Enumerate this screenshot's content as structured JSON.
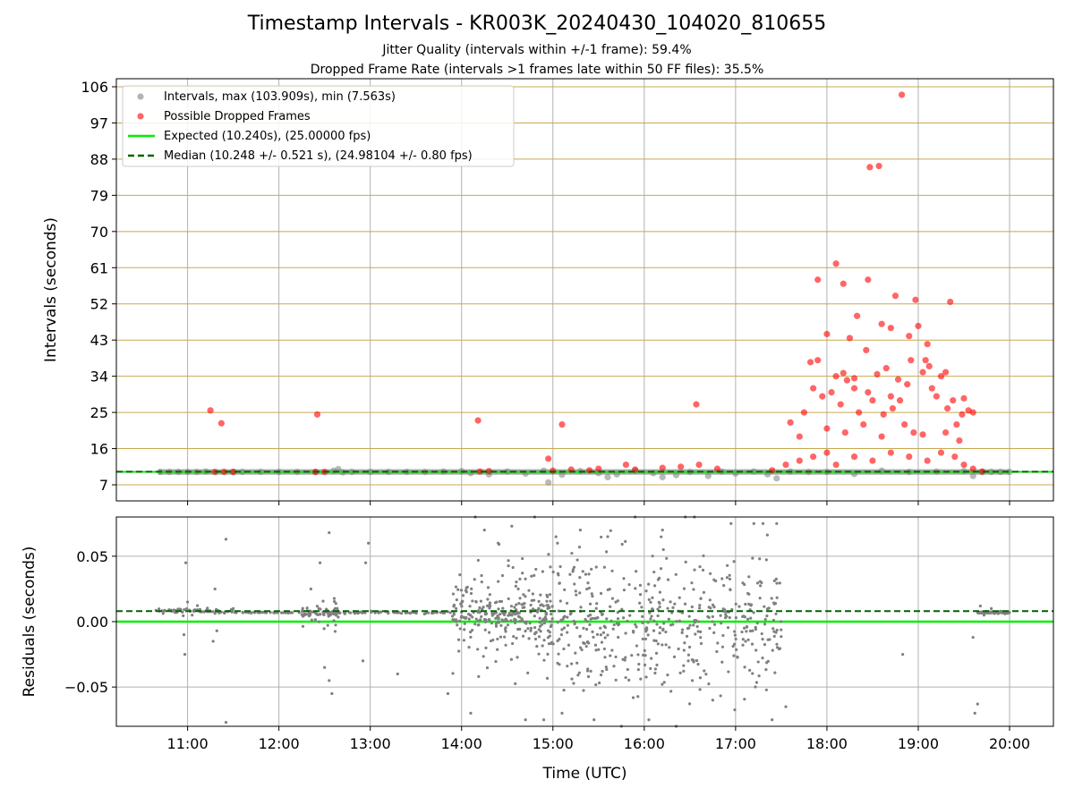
{
  "title": "Timestamp Intervals - KR003K_20240430_104020_810655",
  "subtitle1": "Jitter Quality (intervals within +/-1 frame): 59.4%",
  "subtitle2": "Dropped Frame Rate (intervals >1 frames late within 50 FF files): 35.5%",
  "colors": {
    "intervals": "#808080",
    "dropped": "#ff0000",
    "expected": "#00ee00",
    "median": "#006400",
    "hgrid_top": "#c8a850",
    "grid": "#b0b0b0"
  },
  "chart_data": [
    {
      "type": "scatter",
      "xlabel": "",
      "ylabel": "Intervals (seconds)",
      "ylim": [
        3,
        108
      ],
      "yticks": [
        7,
        16,
        25,
        34,
        43,
        52,
        61,
        70,
        79,
        88,
        97,
        106
      ],
      "xlim": [
        10.22,
        20.48
      ],
      "grid": true,
      "legend": {
        "placement": "top-left",
        "entries": [
          "Intervals, max (103.909s), min (7.563s)",
          "Possible Dropped Frames",
          "Expected (10.240s), (25.00000 fps)",
          "Median (10.248 +/- 0.521 s), (24.98104 +/- 0.80 fps)"
        ]
      },
      "reference_lines": [
        {
          "name": "Expected (10.240s), (25.00000 fps)",
          "y": 10.24,
          "style": "solid"
        },
        {
          "name": "Median (10.248 +/- 0.521 s), (24.98104 +/- 0.80 fps)",
          "y": 10.248,
          "style": "dashed"
        }
      ],
      "series": [
        {
          "name": "Intervals, max (103.909s), min (7.563s)",
          "points": [
            [
              10.7,
              10.2
            ],
            [
              10.8,
              10.2
            ],
            [
              10.9,
              10.2
            ],
            [
              11.0,
              10.2
            ],
            [
              11.1,
              10.2
            ],
            [
              11.2,
              10.3
            ],
            [
              11.5,
              10.2
            ],
            [
              11.6,
              10.2
            ],
            [
              11.8,
              10.2
            ],
            [
              12.0,
              10.2
            ],
            [
              12.2,
              10.2
            ],
            [
              12.4,
              10.2
            ],
            [
              12.6,
              10.5
            ],
            [
              12.65,
              10.9
            ],
            [
              12.7,
              10.1
            ],
            [
              12.8,
              10.2
            ],
            [
              13.0,
              10.2
            ],
            [
              13.2,
              10.2
            ],
            [
              13.4,
              10.2
            ],
            [
              13.6,
              10.2
            ],
            [
              13.8,
              10.3
            ],
            [
              14.0,
              10.4
            ],
            [
              14.1,
              9.9
            ],
            [
              14.3,
              9.6
            ],
            [
              14.5,
              10.3
            ],
            [
              14.7,
              9.8
            ],
            [
              14.9,
              10.5
            ],
            [
              14.95,
              7.6
            ],
            [
              15.1,
              9.5
            ],
            [
              15.3,
              10.4
            ],
            [
              15.5,
              9.9
            ],
            [
              15.6,
              8.9
            ],
            [
              15.7,
              9.6
            ],
            [
              15.9,
              10.5
            ],
            [
              16.1,
              9.9
            ],
            [
              16.2,
              8.9
            ],
            [
              16.35,
              9.4
            ],
            [
              16.5,
              10.2
            ],
            [
              16.7,
              9.2
            ],
            [
              16.85,
              10.3
            ],
            [
              17.0,
              9.8
            ],
            [
              17.2,
              10.3
            ],
            [
              17.35,
              9.6
            ],
            [
              17.45,
              8.6
            ],
            [
              17.6,
              10.3
            ],
            [
              17.8,
              10.2
            ],
            [
              18.0,
              10.2
            ],
            [
              18.3,
              9.7
            ],
            [
              18.6,
              10.5
            ],
            [
              18.9,
              10.2
            ],
            [
              19.2,
              10.3
            ],
            [
              19.5,
              10.4
            ],
            [
              19.6,
              9.2
            ],
            [
              19.7,
              10.2
            ],
            [
              19.8,
              10.2
            ],
            [
              19.9,
              10.2
            ],
            [
              20.0,
              10.2
            ]
          ]
        },
        {
          "name": "Possible Dropped Frames",
          "points": [
            [
              11.25,
              25.5
            ],
            [
              11.37,
              22.3
            ],
            [
              12.42,
              24.5
            ],
            [
              14.18,
              23
            ],
            [
              15.1,
              22
            ],
            [
              16.57,
              27
            ],
            [
              18.82,
              104
            ],
            [
              18.47,
              86
            ],
            [
              18.57,
              86.3
            ],
            [
              18.1,
              62
            ],
            [
              17.9,
              58
            ],
            [
              18.18,
              57
            ],
            [
              18.45,
              58
            ],
            [
              18.75,
              54
            ],
            [
              18.97,
              53
            ],
            [
              19.35,
              52.5
            ],
            [
              18.33,
              49
            ],
            [
              18.6,
              47
            ],
            [
              18.9,
              44
            ],
            [
              18.7,
              46
            ],
            [
              18.0,
              44.5
            ],
            [
              18.25,
              43.5
            ],
            [
              18.43,
              40.5
            ],
            [
              19.0,
              46.5
            ],
            [
              19.1,
              42
            ],
            [
              18.92,
              38
            ],
            [
              17.82,
              37.5
            ],
            [
              17.9,
              38
            ],
            [
              18.1,
              34
            ],
            [
              18.18,
              34.8
            ],
            [
              18.3,
              33.5
            ],
            [
              18.22,
              33
            ],
            [
              18.55,
              34.5
            ],
            [
              18.65,
              36
            ],
            [
              18.78,
              33.2
            ],
            [
              19.05,
              35
            ],
            [
              19.08,
              38
            ],
            [
              19.15,
              31
            ],
            [
              19.25,
              34
            ],
            [
              19.3,
              35
            ],
            [
              19.12,
              36.5
            ],
            [
              17.85,
              31
            ],
            [
              17.95,
              29
            ],
            [
              18.05,
              30
            ],
            [
              18.3,
              31
            ],
            [
              18.45,
              30
            ],
            [
              18.5,
              28
            ],
            [
              18.7,
              29
            ],
            [
              18.8,
              28
            ],
            [
              18.88,
              32
            ],
            [
              19.2,
              29
            ],
            [
              19.38,
              28
            ],
            [
              19.5,
              28.5
            ],
            [
              19.55,
              25.5
            ],
            [
              17.6,
              22.5
            ],
            [
              17.75,
              25
            ],
            [
              18.15,
              27
            ],
            [
              18.35,
              25
            ],
            [
              18.62,
              24.5
            ],
            [
              18.72,
              26
            ],
            [
              19.32,
              26
            ],
            [
              19.42,
              22
            ],
            [
              19.48,
              24.5
            ],
            [
              19.6,
              25
            ],
            [
              17.7,
              19
            ],
            [
              18.0,
              21
            ],
            [
              18.2,
              20
            ],
            [
              18.4,
              22
            ],
            [
              18.6,
              19
            ],
            [
              18.85,
              22
            ],
            [
              18.95,
              20
            ],
            [
              19.05,
              19.5
            ],
            [
              19.3,
              20
            ],
            [
              19.45,
              18
            ],
            [
              11.3,
              10.2
            ],
            [
              11.4,
              10.2
            ],
            [
              11.5,
              10.2
            ],
            [
              12.4,
              10.2
            ],
            [
              12.5,
              10.2
            ],
            [
              14.2,
              10.3
            ],
            [
              14.3,
              10.4
            ],
            [
              15.0,
              10.5
            ],
            [
              15.2,
              10.8
            ],
            [
              15.4,
              10.6
            ],
            [
              15.5,
              11
            ],
            [
              15.9,
              10.8
            ],
            [
              16.2,
              11.2
            ],
            [
              16.4,
              11.5
            ],
            [
              16.6,
              12
            ],
            [
              16.8,
              11
            ],
            [
              17.4,
              10.6
            ],
            [
              17.55,
              12
            ],
            [
              17.7,
              13
            ],
            [
              17.85,
              14
            ],
            [
              18.0,
              15
            ],
            [
              18.1,
              12
            ],
            [
              18.3,
              14
            ],
            [
              18.5,
              13
            ],
            [
              18.7,
              15
            ],
            [
              18.9,
              14
            ],
            [
              19.1,
              13
            ],
            [
              19.25,
              15
            ],
            [
              19.4,
              14
            ],
            [
              19.5,
              12
            ],
            [
              19.6,
              11
            ],
            [
              19.7,
              10.3
            ],
            [
              14.95,
              13.5
            ],
            [
              15.8,
              12
            ]
          ]
        }
      ]
    },
    {
      "type": "scatter",
      "xlabel": "Time (UTC)",
      "ylabel": "Residuals (seconds)",
      "ylim": [
        -0.08,
        0.08
      ],
      "yticks": [
        0.05,
        0.0,
        -0.05
      ],
      "ytick_labels": [
        "0.05",
        "0.00",
        "−0.05"
      ],
      "xlim": [
        10.22,
        20.48
      ],
      "xticks": [
        11,
        12,
        13,
        14,
        15,
        16,
        17,
        18,
        19,
        20
      ],
      "xtick_labels": [
        "11:00",
        "12:00",
        "13:00",
        "14:00",
        "15:00",
        "16:00",
        "17:00",
        "18:00",
        "19:00",
        "20:00"
      ],
      "grid": true,
      "reference_lines": [
        {
          "y": 0.0,
          "style": "solid"
        },
        {
          "y": 0.008,
          "style": "dashed"
        }
      ],
      "series": [
        {
          "name": "",
          "points": [
            [
              10.98,
              0.045
            ],
            [
              10.97,
              -0.025
            ],
            [
              10.96,
              -0.01
            ],
            [
              11.0,
              0.015
            ],
            [
              11.05,
              0.005
            ],
            [
              11.3,
              0.025
            ],
            [
              11.28,
              -0.015
            ],
            [
              11.32,
              -0.007
            ],
            [
              11.42,
              0.063
            ],
            [
              11.42,
              -0.077
            ],
            [
              11.5,
              0.01
            ],
            [
              12.35,
              0.025
            ],
            [
              12.45,
              0.045
            ],
            [
              12.55,
              0.068
            ],
            [
              12.5,
              -0.035
            ],
            [
              12.58,
              -0.055
            ],
            [
              12.55,
              -0.045
            ],
            [
              12.95,
              0.045
            ],
            [
              12.92,
              -0.03
            ],
            [
              12.98,
              0.06
            ],
            [
              13.3,
              -0.04
            ],
            [
              13.85,
              -0.055
            ],
            [
              14.1,
              -0.07
            ],
            [
              14.15,
              0.08
            ],
            [
              14.25,
              0.07
            ],
            [
              14.4,
              0.06
            ],
            [
              14.55,
              0.073
            ],
            [
              14.7,
              -0.075
            ],
            [
              14.8,
              0.08
            ],
            [
              14.9,
              -0.075
            ],
            [
              15.05,
              0.06
            ],
            [
              15.1,
              -0.07
            ],
            [
              15.3,
              0.07
            ],
            [
              15.45,
              -0.075
            ],
            [
              15.6,
              0.065
            ],
            [
              15.75,
              -0.08
            ],
            [
              15.9,
              0.08
            ],
            [
              16.05,
              -0.075
            ],
            [
              16.2,
              0.07
            ],
            [
              16.35,
              -0.08
            ],
            [
              16.45,
              0.08
            ],
            [
              16.55,
              0.08
            ],
            [
              16.75,
              -0.06
            ],
            [
              16.95,
              0.075
            ],
            [
              17.2,
              0.075
            ],
            [
              17.3,
              0.075
            ],
            [
              17.45,
              0.075
            ],
            [
              17.4,
              -0.075
            ],
            [
              17.55,
              -0.065
            ],
            [
              18.83,
              -0.025
            ],
            [
              19.6,
              -0.012
            ],
            [
              19.62,
              -0.07
            ],
            [
              19.65,
              -0.063
            ],
            [
              19.68,
              0.012
            ],
            [
              19.72,
              0.005
            ],
            [
              19.8,
              0.01
            ],
            [
              19.9,
              0.008
            ],
            [
              19.95,
              0.006
            ]
          ]
        }
      ]
    }
  ]
}
